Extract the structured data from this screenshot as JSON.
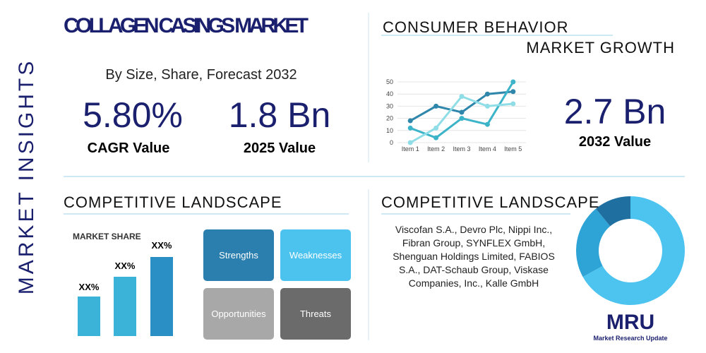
{
  "side_label": "MARKET INSIGHTS",
  "header": {
    "title": "COLLAGEN CASINGS MARKET",
    "subtitle": "By Size, Share, Forecast 2032"
  },
  "stats": [
    {
      "value": "5.80%",
      "label": "CAGR Value"
    },
    {
      "value": "1.8 Bn",
      "label": "2025 Value"
    },
    {
      "value": "2.7 Bn",
      "label": "2032 Value"
    }
  ],
  "consumer": {
    "title": "CONSUMER BEHAVIOR",
    "subtitle": "MARKET GROWTH",
    "chart": {
      "type": "line",
      "categories": [
        "Item 1",
        "Item 2",
        "Item 3",
        "Item 4",
        "Item 5"
      ],
      "series": [
        {
          "color": "#2e86ab",
          "values": [
            18,
            30,
            25,
            40,
            42
          ]
        },
        {
          "color": "#3bb3c9",
          "values": [
            12,
            4,
            20,
            15,
            50
          ]
        },
        {
          "color": "#8fdde6",
          "values": [
            0,
            12,
            38,
            30,
            32
          ]
        }
      ],
      "ylim": [
        0,
        50
      ],
      "yticks": [
        0,
        10,
        20,
        30,
        40,
        50
      ]
    }
  },
  "competitive_left": {
    "title": "COMPETITIVE LANDSCAPE",
    "market_share": {
      "title": "MARKET SHARE",
      "labels": [
        "XX%",
        "XX%",
        "XX%"
      ]
    },
    "swot": [
      "Strengths",
      "Weaknesses",
      "Opportunities",
      "Threats"
    ]
  },
  "competitive_right": {
    "title": "COMPETITIVE LANDSCAPE",
    "companies": [
      "Viscofan S.A., Devro Plc, Nippi Inc.,",
      "Fibran Group, SYNFLEX GmbH,",
      "Shenguan Holdings Limited, FABIOS",
      "S.A., DAT-Schaub Group, Viskase",
      "Companies, Inc., Kalle GmbH"
    ],
    "donut": {
      "type": "pie",
      "values": [
        67,
        22,
        11
      ],
      "colors": [
        "#4dc3f0",
        "#2ea3d5",
        "#1f6fa0"
      ]
    }
  },
  "logo": {
    "mark": "MRU",
    "name": "Market Research Update"
  }
}
